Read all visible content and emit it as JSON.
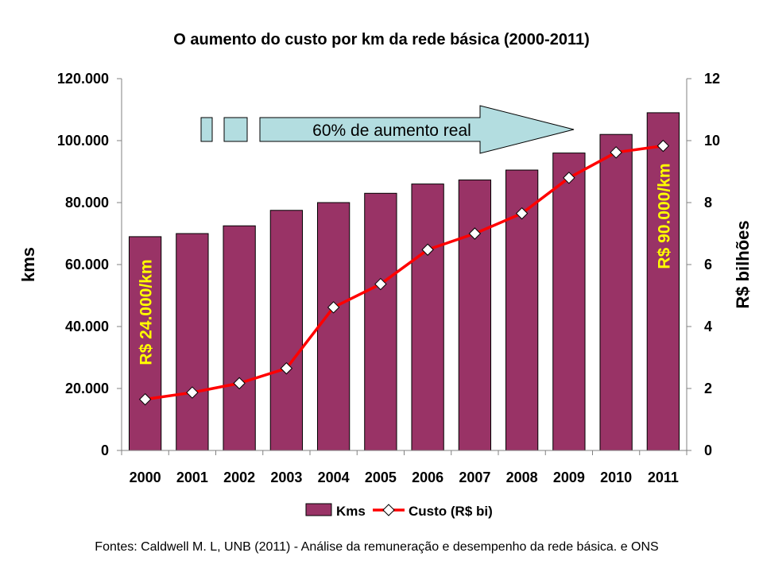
{
  "chart_data": {
    "type": "bar+line",
    "title": "O aumento do custo por km da rede básica (2000-2011)",
    "categories": [
      "2000",
      "2001",
      "2002",
      "2003",
      "2004",
      "2005",
      "2006",
      "2007",
      "2008",
      "2009",
      "2010",
      "2011"
    ],
    "series": [
      {
        "name": "Kms",
        "type": "bar",
        "axis": "left",
        "color": "#993366",
        "values": [
          69000,
          70000,
          72500,
          77500,
          80000,
          83000,
          86000,
          87300,
          90500,
          96000,
          102000,
          109000
        ]
      },
      {
        "name": "Custo (R$ bi)",
        "type": "line",
        "axis": "right",
        "color": "#ff0000",
        "marker": "diamond",
        "values": [
          1.65,
          1.87,
          2.17,
          2.65,
          4.62,
          5.37,
          6.48,
          7.0,
          7.65,
          8.8,
          9.62,
          9.83
        ]
      }
    ],
    "ylabel_left": "kms",
    "ylabel_right": "R$ bilhões",
    "ylim_left": [
      0,
      120000
    ],
    "ylim_right": [
      0,
      12
    ],
    "yticks_left": [
      "0",
      "20.000",
      "40.000",
      "60.000",
      "80.000",
      "100.000",
      "120.000"
    ],
    "yticks_right": [
      "0",
      "2",
      "4",
      "6",
      "8",
      "10",
      "12"
    ],
    "grid": false,
    "legend_position": "bottom",
    "annotations": {
      "arrow": "60% de aumento real",
      "start_label": "R$ 24.000/km",
      "end_label": "R$ 90.000/km"
    },
    "source": "Fontes: Caldwell M. L, UNB (2011) - Análise da remuneração e desempenho da rede básica. e ONS"
  },
  "colors": {
    "bar": "#993366",
    "line": "#ff0000",
    "arrow_fill": "#b3dde0",
    "annotation_text": "#ffff00"
  }
}
